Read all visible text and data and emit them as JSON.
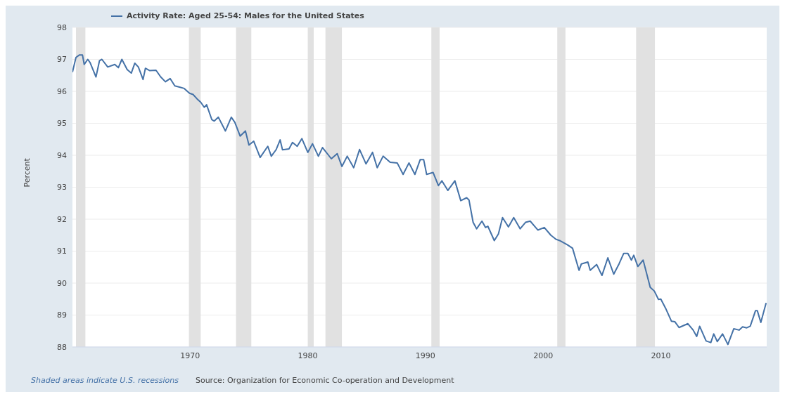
{
  "chart_data": {
    "type": "line",
    "ylabel": "Percent",
    "annotations": [
      "Shaded areas indicate U.S. recessions",
      "Source: Organization for Economic Co-operation and Development"
    ],
    "xlim": [
      1960,
      2019
    ],
    "xticks": [
      1970,
      1980,
      1990,
      2000,
      2010
    ],
    "ylim": [
      88,
      98
    ],
    "yticks": [
      88,
      89,
      90,
      91,
      92,
      93,
      94,
      95,
      96,
      97,
      98
    ],
    "grid": "y",
    "legend": "top left",
    "marker": "none",
    "line_style": "solid",
    "bands": [
      {
        "axis": "x",
        "from": 1960.3,
        "to": 1961.1,
        "color": "#e1e1e1"
      },
      {
        "axis": "x",
        "from": 1969.9,
        "to": 1970.9,
        "color": "#e1e1e1"
      },
      {
        "axis": "x",
        "from": 1973.9,
        "to": 1975.2,
        "color": "#e1e1e1"
      },
      {
        "axis": "x",
        "from": 1980.0,
        "to": 1980.5,
        "color": "#e1e1e1"
      },
      {
        "axis": "x",
        "from": 1981.5,
        "to": 1982.9,
        "color": "#e1e1e1"
      },
      {
        "axis": "x",
        "from": 1990.5,
        "to": 1991.2,
        "color": "#e1e1e1"
      },
      {
        "axis": "x",
        "from": 2001.2,
        "to": 2001.9,
        "color": "#e1e1e1"
      },
      {
        "axis": "x",
        "from": 2007.9,
        "to": 2009.5,
        "color": "#e1e1e1"
      }
    ],
    "series": [
      {
        "name": "Activity Rate: Aged 25-54: Males for the United States",
        "color": "#4572a7",
        "x": [
          1960.0,
          1960.3,
          1960.6,
          1960.85,
          1961.0,
          1961.3,
          1961.5,
          1962.0,
          1962.3,
          1962.5,
          1963.0,
          1963.6,
          1963.9,
          1964.2,
          1964.65,
          1965.0,
          1965.3,
          1965.6,
          1966.0,
          1966.2,
          1966.55,
          1967.1,
          1967.5,
          1967.9,
          1968.3,
          1968.7,
          1969.1,
          1969.5,
          1969.95,
          1970.25,
          1970.6,
          1970.9,
          1971.2,
          1971.4,
          1971.85,
          1972.05,
          1972.4,
          1973.0,
          1973.5,
          1973.8,
          1974.25,
          1974.7,
          1975.0,
          1975.4,
          1975.95,
          1976.6,
          1976.9,
          1977.3,
          1977.65,
          1977.85,
          1978.4,
          1978.7,
          1979.1,
          1979.5,
          1980.0,
          1980.4,
          1980.9,
          1981.25,
          1982.0,
          1982.5,
          1982.9,
          1983.35,
          1983.9,
          1984.4,
          1984.95,
          1985.5,
          1985.9,
          1986.4,
          1987.0,
          1987.6,
          1988.1,
          1988.6,
          1989.1,
          1989.55,
          1989.85,
          1990.1,
          1990.65,
          1991.1,
          1991.4,
          1991.9,
          1992.5,
          1993.0,
          1993.5,
          1993.7,
          1994.05,
          1994.35,
          1994.8,
          1995.1,
          1995.3,
          1995.85,
          1996.2,
          1996.55,
          1997.05,
          1997.5,
          1998.05,
          1998.5,
          1998.9,
          1999.55,
          2000.1,
          2000.65,
          2001.1,
          2001.4,
          2002.05,
          2002.5,
          2003.05,
          2003.25,
          2003.8,
          2004.0,
          2004.55,
          2005.0,
          2005.5,
          2006.0,
          2006.45,
          2006.85,
          2007.2,
          2007.5,
          2007.7,
          2008.05,
          2008.5,
          2009.1,
          2009.45,
          2009.8,
          2010.0,
          2010.45,
          2010.9,
          2011.2,
          2011.55,
          2012.3,
          2012.75,
          2013.05,
          2013.3,
          2013.85,
          2014.25,
          2014.5,
          2014.8,
          2015.25,
          2015.7,
          2016.2,
          2016.65,
          2016.95,
          2017.3,
          2017.6,
          2018.05,
          2018.2,
          2018.5,
          2018.95
        ],
        "values": [
          96.6,
          97.06,
          97.14,
          97.14,
          96.84,
          97.0,
          96.9,
          96.45,
          96.96,
          97.0,
          96.76,
          96.84,
          96.74,
          97.0,
          96.68,
          96.57,
          96.88,
          96.76,
          96.37,
          96.72,
          96.65,
          96.66,
          96.45,
          96.3,
          96.4,
          96.17,
          96.13,
          96.09,
          95.94,
          95.9,
          95.76,
          95.66,
          95.5,
          95.58,
          95.11,
          95.07,
          95.19,
          94.76,
          95.19,
          95.03,
          94.6,
          94.76,
          94.32,
          94.44,
          93.93,
          94.28,
          93.97,
          94.17,
          94.48,
          94.17,
          94.2,
          94.4,
          94.28,
          94.52,
          94.09,
          94.36,
          93.97,
          94.24,
          93.89,
          94.05,
          93.65,
          93.97,
          93.61,
          94.18,
          93.73,
          94.09,
          93.61,
          93.97,
          93.78,
          93.76,
          93.4,
          93.76,
          93.4,
          93.86,
          93.86,
          93.4,
          93.46,
          93.05,
          93.2,
          92.9,
          93.2,
          92.58,
          92.67,
          92.6,
          91.9,
          91.7,
          91.94,
          91.74,
          91.78,
          91.33,
          91.54,
          92.05,
          91.76,
          92.05,
          91.7,
          91.9,
          91.94,
          91.66,
          91.74,
          91.5,
          91.37,
          91.33,
          91.2,
          91.09,
          90.4,
          90.6,
          90.66,
          90.4,
          90.58,
          90.24,
          90.79,
          90.28,
          90.6,
          90.93,
          90.93,
          90.72,
          90.87,
          90.52,
          90.72,
          89.87,
          89.75,
          89.49,
          89.5,
          89.18,
          88.81,
          88.79,
          88.61,
          88.73,
          88.53,
          88.33,
          88.65,
          88.19,
          88.14,
          88.41,
          88.17,
          88.41,
          88.08,
          88.57,
          88.53,
          88.63,
          88.6,
          88.65,
          89.14,
          89.14,
          88.77,
          89.38
        ]
      }
    ]
  }
}
